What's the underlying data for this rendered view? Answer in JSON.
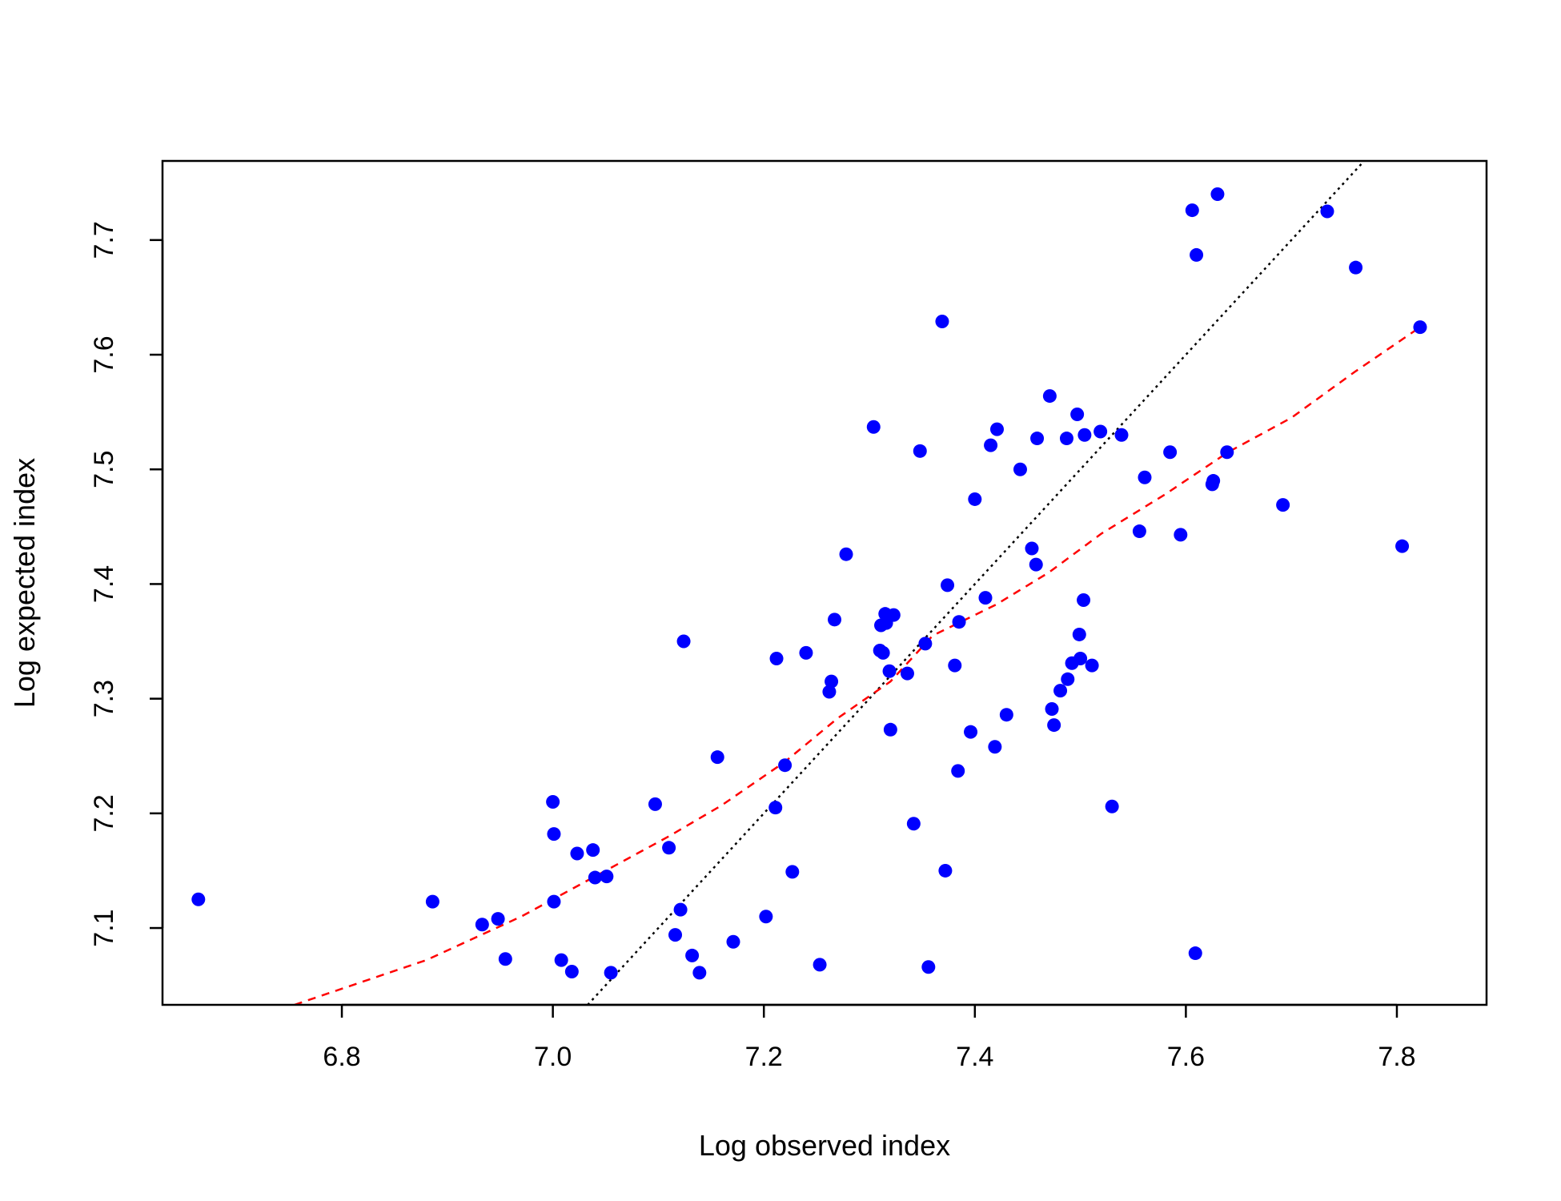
{
  "chart_data": {
    "type": "scatter",
    "title": "",
    "xlabel": "Log observed index",
    "ylabel": "Log expected index",
    "xlim": [
      6.63,
      7.885
    ],
    "ylim": [
      7.033,
      7.769
    ],
    "xticks": [
      6.8,
      7.0,
      7.2,
      7.4,
      7.6,
      7.8
    ],
    "xtick_labels": [
      "6.8",
      "7.0",
      "7.2",
      "7.4",
      "7.6",
      "7.8"
    ],
    "yticks": [
      7.1,
      7.2,
      7.3,
      7.4,
      7.5,
      7.6,
      7.7
    ],
    "ytick_labels": [
      "7.1",
      "7.2",
      "7.3",
      "7.4",
      "7.5",
      "7.6",
      "7.7"
    ],
    "grid": false,
    "point_color": "#0000ff",
    "points": [
      {
        "x": 6.664,
        "y": 7.125
      },
      {
        "x": 6.886,
        "y": 7.123
      },
      {
        "x": 6.933,
        "y": 7.103
      },
      {
        "x": 6.948,
        "y": 7.108
      },
      {
        "x": 6.955,
        "y": 7.073
      },
      {
        "x": 7.0,
        "y": 7.21
      },
      {
        "x": 7.001,
        "y": 7.182
      },
      {
        "x": 7.001,
        "y": 7.123
      },
      {
        "x": 7.008,
        "y": 7.072
      },
      {
        "x": 7.018,
        "y": 7.062
      },
      {
        "x": 7.023,
        "y": 7.165
      },
      {
        "x": 7.038,
        "y": 7.168
      },
      {
        "x": 7.04,
        "y": 7.144
      },
      {
        "x": 7.051,
        "y": 7.145
      },
      {
        "x": 7.055,
        "y": 7.061
      },
      {
        "x": 7.097,
        "y": 7.208
      },
      {
        "x": 7.11,
        "y": 7.17
      },
      {
        "x": 7.116,
        "y": 7.094
      },
      {
        "x": 7.121,
        "y": 7.116
      },
      {
        "x": 7.124,
        "y": 7.35
      },
      {
        "x": 7.132,
        "y": 7.076
      },
      {
        "x": 7.139,
        "y": 7.061
      },
      {
        "x": 7.156,
        "y": 7.249
      },
      {
        "x": 7.171,
        "y": 7.088
      },
      {
        "x": 7.202,
        "y": 7.11
      },
      {
        "x": 7.211,
        "y": 7.205
      },
      {
        "x": 7.212,
        "y": 7.335
      },
      {
        "x": 7.22,
        "y": 7.242
      },
      {
        "x": 7.227,
        "y": 7.149
      },
      {
        "x": 7.24,
        "y": 7.34
      },
      {
        "x": 7.253,
        "y": 7.068
      },
      {
        "x": 7.262,
        "y": 7.306
      },
      {
        "x": 7.264,
        "y": 7.315
      },
      {
        "x": 7.267,
        "y": 7.369
      },
      {
        "x": 7.278,
        "y": 7.426
      },
      {
        "x": 7.304,
        "y": 7.537
      },
      {
        "x": 7.31,
        "y": 7.342
      },
      {
        "x": 7.311,
        "y": 7.364
      },
      {
        "x": 7.313,
        "y": 7.34
      },
      {
        "x": 7.315,
        "y": 7.374
      },
      {
        "x": 7.316,
        "y": 7.366
      },
      {
        "x": 7.319,
        "y": 7.324
      },
      {
        "x": 7.32,
        "y": 7.273
      },
      {
        "x": 7.323,
        "y": 7.373
      },
      {
        "x": 7.336,
        "y": 7.322
      },
      {
        "x": 7.342,
        "y": 7.191
      },
      {
        "x": 7.348,
        "y": 7.516
      },
      {
        "x": 7.353,
        "y": 7.348
      },
      {
        "x": 7.356,
        "y": 7.066
      },
      {
        "x": 7.369,
        "y": 7.629
      },
      {
        "x": 7.372,
        "y": 7.15
      },
      {
        "x": 7.374,
        "y": 7.399
      },
      {
        "x": 7.381,
        "y": 7.329
      },
      {
        "x": 7.384,
        "y": 7.237
      },
      {
        "x": 7.385,
        "y": 7.367
      },
      {
        "x": 7.396,
        "y": 7.271
      },
      {
        "x": 7.4,
        "y": 7.474
      },
      {
        "x": 7.41,
        "y": 7.388
      },
      {
        "x": 7.415,
        "y": 7.521
      },
      {
        "x": 7.419,
        "y": 7.258
      },
      {
        "x": 7.421,
        "y": 7.535
      },
      {
        "x": 7.43,
        "y": 7.286
      },
      {
        "x": 7.443,
        "y": 7.5
      },
      {
        "x": 7.454,
        "y": 7.431
      },
      {
        "x": 7.458,
        "y": 7.417
      },
      {
        "x": 7.459,
        "y": 7.527
      },
      {
        "x": 7.471,
        "y": 7.564
      },
      {
        "x": 7.473,
        "y": 7.291
      },
      {
        "x": 7.475,
        "y": 7.277
      },
      {
        "x": 7.481,
        "y": 7.307
      },
      {
        "x": 7.487,
        "y": 7.527
      },
      {
        "x": 7.488,
        "y": 7.317
      },
      {
        "x": 7.492,
        "y": 7.331
      },
      {
        "x": 7.497,
        "y": 7.548
      },
      {
        "x": 7.499,
        "y": 7.356
      },
      {
        "x": 7.5,
        "y": 7.335
      },
      {
        "x": 7.503,
        "y": 7.386
      },
      {
        "x": 7.504,
        "y": 7.53
      },
      {
        "x": 7.511,
        "y": 7.329
      },
      {
        "x": 7.519,
        "y": 7.533
      },
      {
        "x": 7.53,
        "y": 7.206
      },
      {
        "x": 7.539,
        "y": 7.53
      },
      {
        "x": 7.556,
        "y": 7.446
      },
      {
        "x": 7.561,
        "y": 7.493
      },
      {
        "x": 7.585,
        "y": 7.515
      },
      {
        "x": 7.595,
        "y": 7.443
      },
      {
        "x": 7.606,
        "y": 7.726
      },
      {
        "x": 7.609,
        "y": 7.078
      },
      {
        "x": 7.61,
        "y": 7.687
      },
      {
        "x": 7.625,
        "y": 7.487
      },
      {
        "x": 7.626,
        "y": 7.49
      },
      {
        "x": 7.63,
        "y": 7.74
      },
      {
        "x": 7.639,
        "y": 7.515
      },
      {
        "x": 7.692,
        "y": 7.469
      },
      {
        "x": 7.734,
        "y": 7.725
      },
      {
        "x": 7.761,
        "y": 7.676
      },
      {
        "x": 7.805,
        "y": 7.433
      },
      {
        "x": 7.822,
        "y": 7.624
      }
    ],
    "reference_line": {
      "style": "dotted",
      "color": "#000000",
      "x": [
        7.033,
        7.774
      ],
      "y": [
        7.033,
        7.774
      ]
    },
    "smooth_line": {
      "style": "dashed",
      "color": "#ff0000",
      "x": [
        6.755,
        6.88,
        6.97,
        7.01,
        7.05,
        7.11,
        7.16,
        7.22,
        7.27,
        7.32,
        7.36,
        7.42,
        7.47,
        7.52,
        7.58,
        7.64,
        7.7,
        7.76,
        7.822
      ],
      "y": [
        7.033,
        7.072,
        7.11,
        7.13,
        7.15,
        7.18,
        7.207,
        7.245,
        7.283,
        7.315,
        7.355,
        7.382,
        7.41,
        7.444,
        7.478,
        7.515,
        7.545,
        7.585,
        7.624
      ]
    }
  }
}
